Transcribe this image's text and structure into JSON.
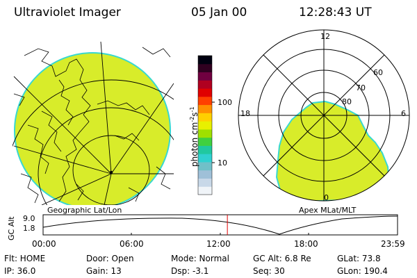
{
  "header": {
    "title": "Ultraviolet Imager",
    "date": "05 Jan 00",
    "time": "12:28:43 UT"
  },
  "colorbar": {
    "label": "photon cm",
    "label_sup1": "-2",
    "label_mid": "s",
    "label_sup2": "-1",
    "tick_100": "100",
    "tick_10": "10",
    "colors": [
      "#f0f4f8",
      "#c8d8e8",
      "#9fc0d8",
      "#70c0c8",
      "#30d0d0",
      "#20c8a0",
      "#40d040",
      "#a0e000",
      "#e8f000",
      "#ffd000",
      "#ff9000",
      "#ff4000",
      "#e00000",
      "#b00020",
      "#700040",
      "#300020",
      "#000010"
    ]
  },
  "geo_map": {
    "caption": "Geographic Lat/Lon",
    "aurora_color": "#d8ec2a",
    "edge_color": "#38d8d0"
  },
  "polar_plot": {
    "caption": "Apex  MLat/MLT",
    "label_top": "12",
    "label_bottom": "0",
    "label_left": "18",
    "label_right": "6",
    "lat_60": "60",
    "lat_70": "70",
    "lat_80": "80"
  },
  "timeline": {
    "axis_label": "GC Alt",
    "y_top": "9.0",
    "y_bottom": "1.8",
    "ticks": [
      "00:00",
      "06:00",
      "12:00",
      "18:00",
      "23:59"
    ],
    "current_fraction": 0.5199,
    "marker_color": "#e00000"
  },
  "info": {
    "row1": {
      "flt": "Flt: HOME",
      "door": "Door: Open",
      "mode": "Mode: Normal",
      "gcalt": "GC Alt: 6.8 Re",
      "glat": "GLat:  73.8"
    },
    "row2": {
      "ip": "IP: 36.0",
      "gain": "Gain: 13",
      "dsp": "Dsp:   -3.1",
      "seq": "Seq: 30",
      "glon": "GLon: 190.4"
    }
  }
}
